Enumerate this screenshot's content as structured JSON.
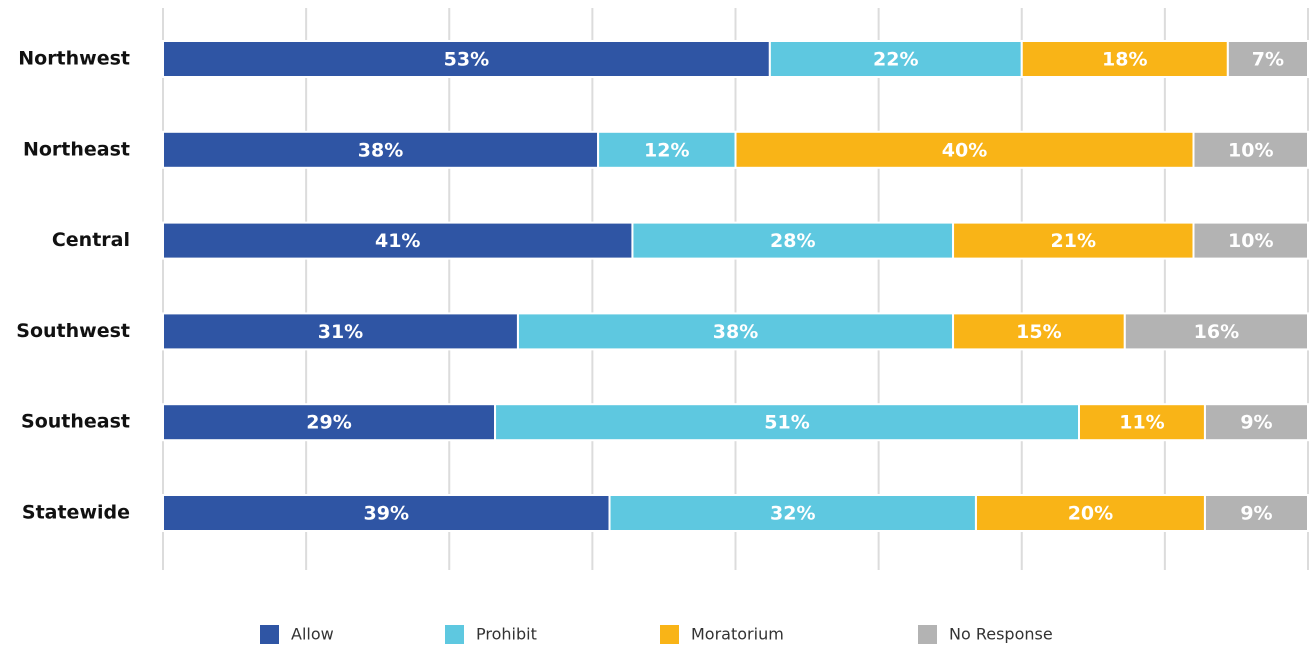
{
  "chart_data": {
    "type": "stacked_barh",
    "categories": [
      "Northwest",
      "Northeast",
      "Central",
      "Southwest",
      "Southeast",
      "Statewide"
    ],
    "series": [
      {
        "name": "Allow",
        "color": "#2f55a4",
        "values": [
          53,
          38,
          41,
          31,
          29,
          39
        ],
        "value_labels": [
          "53%",
          "38%",
          "41%",
          "31%",
          "29%",
          "39%"
        ]
      },
      {
        "name": "Prohibit",
        "color": "#5ec8e0",
        "values": [
          22,
          12,
          28,
          38,
          51,
          32
        ],
        "value_labels": [
          "22%",
          "12%",
          "28%",
          "38%",
          "51%",
          "32%"
        ]
      },
      {
        "name": "Moratorium",
        "color": "#f9b417",
        "values": [
          18,
          40,
          21,
          15,
          11,
          20
        ],
        "value_labels": [
          "18%",
          "40%",
          "21%",
          "15%",
          "11%",
          "20%"
        ]
      },
      {
        "name": "No Response",
        "color": "#b3b3b3",
        "values": [
          7,
          10,
          10,
          16,
          9,
          9
        ],
        "value_labels": [
          "7%",
          "10%",
          "10%",
          "16%",
          "9%",
          "9%"
        ]
      }
    ],
    "xlim": [
      0,
      100
    ],
    "xticks": [
      0,
      12.5,
      25,
      37.5,
      50,
      62.5,
      75,
      87.5,
      100
    ],
    "grid": true
  }
}
